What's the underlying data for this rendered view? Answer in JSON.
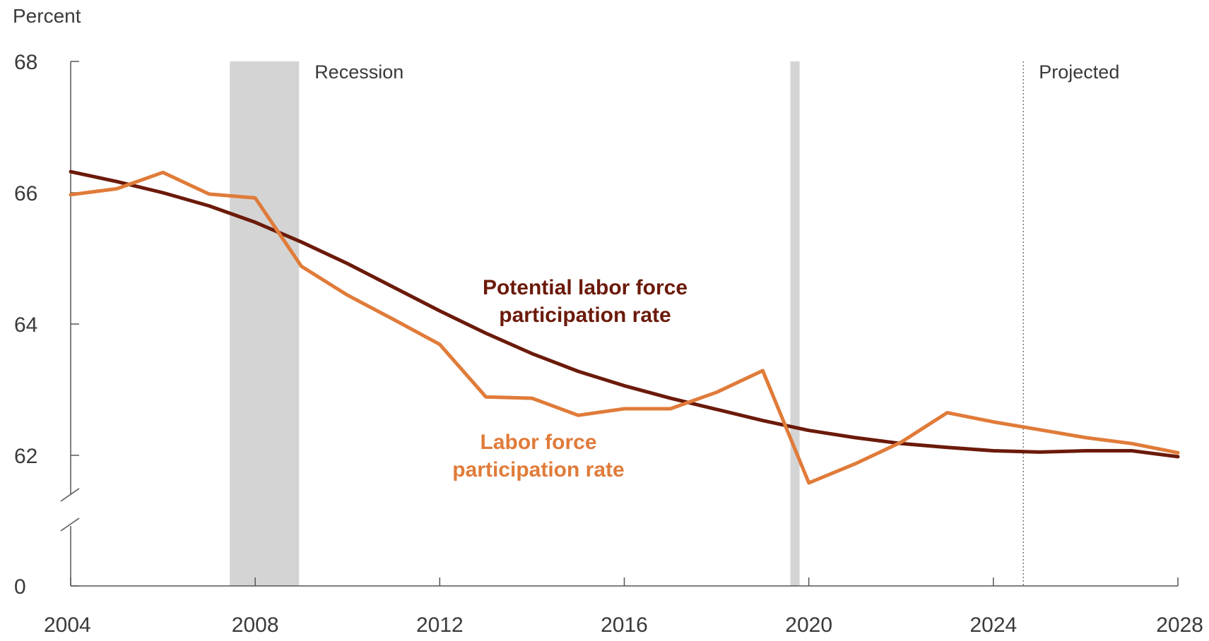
{
  "chart_data": {
    "type": "line",
    "title": "",
    "ylabel": "Percent",
    "xlabel": "",
    "xlim": [
      2004,
      2028
    ],
    "ylim": [
      61,
      68
    ],
    "y_axis_break": true,
    "y_ticks": [
      {
        "value": 68,
        "label": "68"
      },
      {
        "value": 66,
        "label": "66"
      },
      {
        "value": 64,
        "label": "64"
      },
      {
        "value": 62,
        "label": "62"
      },
      {
        "value": 0,
        "label": "0"
      }
    ],
    "x_ticks": [
      2004,
      2008,
      2012,
      2016,
      2020,
      2024,
      2028
    ],
    "x_tick_labels": [
      "2004",
      "2008",
      "2012",
      "2016",
      "2020",
      "2024",
      "2028"
    ],
    "grid": false,
    "recessions": [
      {
        "start": 2007.45,
        "end": 2008.95
      },
      {
        "start": 2019.6,
        "end": 2019.8
      }
    ],
    "recession_label": "Recession",
    "projection_start": 2024.65,
    "projection_label": "Projected",
    "series": [
      {
        "name": "Potential labor force participation rate",
        "label_lines": [
          "Potential labor force",
          "participation rate"
        ],
        "color": "#6b1a0a",
        "x": [
          2004,
          2005,
          2006,
          2007,
          2008,
          2009,
          2010,
          2011,
          2012,
          2013,
          2014,
          2015,
          2016,
          2017,
          2018,
          2019,
          2020,
          2021,
          2022,
          2023,
          2024,
          2025,
          2026,
          2027,
          2028
        ],
        "values": [
          66.32,
          66.17,
          66.0,
          65.8,
          65.55,
          65.25,
          64.92,
          64.56,
          64.2,
          63.86,
          63.55,
          63.28,
          63.06,
          62.87,
          62.7,
          62.53,
          62.38,
          62.27,
          62.18,
          62.12,
          62.07,
          62.05,
          62.07,
          62.07,
          61.98
        ]
      },
      {
        "name": "Labor force participation rate",
        "label_lines": [
          "Labor force",
          "participation rate"
        ],
        "color": "#e07b39",
        "x": [
          2004,
          2005,
          2006,
          2007,
          2008,
          2009,
          2010,
          2011,
          2012,
          2013,
          2014,
          2015,
          2016,
          2017,
          2018,
          2019,
          2020,
          2021,
          2022,
          2023,
          2024,
          2025,
          2026,
          2027,
          2028
        ],
        "values": [
          65.97,
          66.06,
          66.31,
          65.98,
          65.92,
          64.88,
          64.44,
          64.07,
          63.69,
          62.89,
          62.87,
          62.61,
          62.71,
          62.71,
          62.96,
          63.29,
          61.58,
          61.87,
          62.2,
          62.65,
          62.51,
          62.39,
          62.27,
          62.18,
          62.04
        ]
      }
    ]
  }
}
